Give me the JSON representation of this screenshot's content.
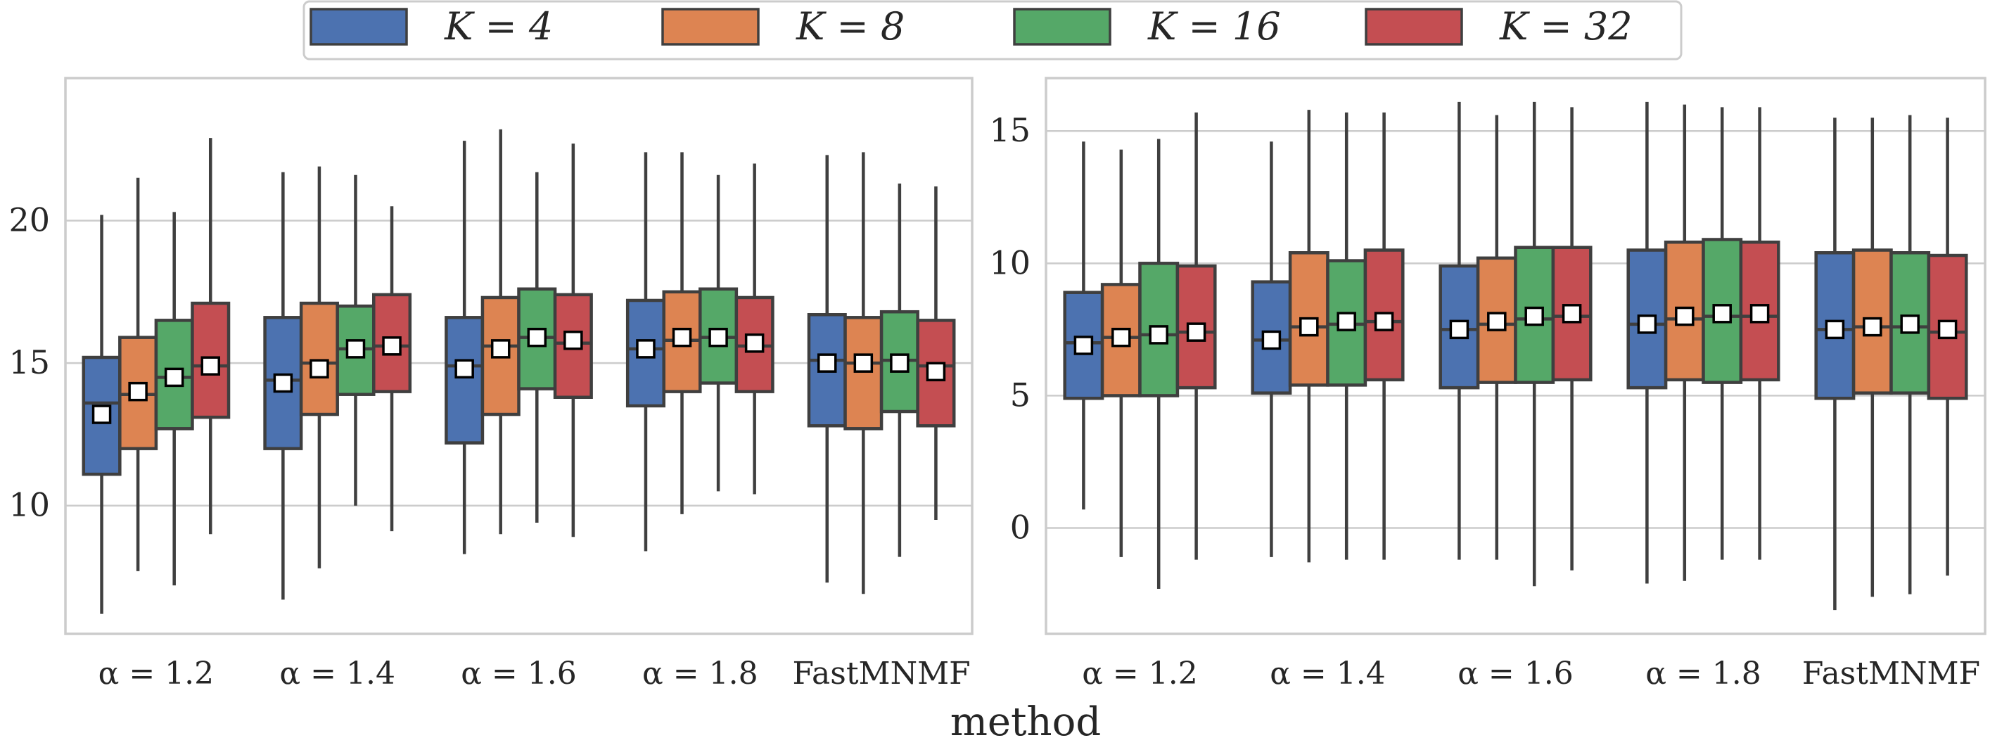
{
  "xlabel": "method",
  "categories": [
    "α = 1.2",
    "α = 1.4",
    "α = 1.6",
    "α = 1.8",
    "FastMNMF"
  ],
  "legend": {
    "placement": "top-center",
    "entries": [
      {
        "label": "K = 4",
        "color": "#4c72b0"
      },
      {
        "label": "K = 8",
        "color": "#dd8452"
      },
      {
        "label": "K = 16",
        "color": "#55a868"
      },
      {
        "label": "K = 32",
        "color": "#c44e52"
      }
    ]
  },
  "chart_data": [
    {
      "type": "box",
      "xlabel": "method",
      "ylabel": "",
      "ylim": [
        5.5,
        25.0
      ],
      "yticks": [
        10,
        15,
        20
      ],
      "grid": true,
      "mean_marker": "white-square",
      "categories": [
        "α = 1.2",
        "α = 1.4",
        "α = 1.6",
        "α = 1.8",
        "FastMNMF"
      ],
      "series": [
        {
          "name": "K = 4",
          "boxes": [
            {
              "whisker_low": 6.2,
              "q1": 11.1,
              "median": 13.6,
              "q3": 15.2,
              "whisker_high": 20.2,
              "mean": 13.2
            },
            {
              "whisker_low": 6.7,
              "q1": 12.0,
              "median": 14.4,
              "q3": 16.6,
              "whisker_high": 21.7,
              "mean": 14.3
            },
            {
              "whisker_low": 8.3,
              "q1": 12.2,
              "median": 14.9,
              "q3": 16.6,
              "whisker_high": 22.8,
              "mean": 14.8
            },
            {
              "whisker_low": 8.4,
              "q1": 13.5,
              "median": 15.5,
              "q3": 17.2,
              "whisker_high": 22.4,
              "mean": 15.5
            },
            {
              "whisker_low": 7.3,
              "q1": 12.8,
              "median": 15.1,
              "q3": 16.7,
              "whisker_high": 22.3,
              "mean": 15.0
            }
          ]
        },
        {
          "name": "K = 8",
          "boxes": [
            {
              "whisker_low": 7.7,
              "q1": 12.0,
              "median": 13.9,
              "q3": 15.9,
              "whisker_high": 21.5,
              "mean": 14.0
            },
            {
              "whisker_low": 7.8,
              "q1": 13.2,
              "median": 15.0,
              "q3": 17.1,
              "whisker_high": 21.9,
              "mean": 14.8
            },
            {
              "whisker_low": 9.0,
              "q1": 13.2,
              "median": 15.6,
              "q3": 17.3,
              "whisker_high": 23.2,
              "mean": 15.5
            },
            {
              "whisker_low": 9.7,
              "q1": 14.0,
              "median": 15.8,
              "q3": 17.5,
              "whisker_high": 22.4,
              "mean": 15.9
            },
            {
              "whisker_low": 6.9,
              "q1": 12.7,
              "median": 15.0,
              "q3": 16.6,
              "whisker_high": 22.4,
              "mean": 15.0
            }
          ]
        },
        {
          "name": "K = 16",
          "boxes": [
            {
              "whisker_low": 7.2,
              "q1": 12.7,
              "median": 14.5,
              "q3": 16.5,
              "whisker_high": 20.3,
              "mean": 14.5
            },
            {
              "whisker_low": 10.0,
              "q1": 13.9,
              "median": 15.5,
              "q3": 17.0,
              "whisker_high": 21.6,
              "mean": 15.5
            },
            {
              "whisker_low": 9.4,
              "q1": 14.1,
              "median": 15.9,
              "q3": 17.6,
              "whisker_high": 21.7,
              "mean": 15.9
            },
            {
              "whisker_low": 10.5,
              "q1": 14.3,
              "median": 15.9,
              "q3": 17.6,
              "whisker_high": 21.6,
              "mean": 15.9
            },
            {
              "whisker_low": 8.2,
              "q1": 13.3,
              "median": 15.1,
              "q3": 16.8,
              "whisker_high": 21.3,
              "mean": 15.0
            }
          ]
        },
        {
          "name": "K = 32",
          "boxes": [
            {
              "whisker_low": 9.0,
              "q1": 13.1,
              "median": 14.9,
              "q3": 17.1,
              "whisker_high": 22.9,
              "mean": 14.9
            },
            {
              "whisker_low": 9.1,
              "q1": 14.0,
              "median": 15.6,
              "q3": 17.4,
              "whisker_high": 20.5,
              "mean": 15.6
            },
            {
              "whisker_low": 8.9,
              "q1": 13.8,
              "median": 15.7,
              "q3": 17.4,
              "whisker_high": 22.7,
              "mean": 15.8
            },
            {
              "whisker_low": 10.4,
              "q1": 14.0,
              "median": 15.6,
              "q3": 17.3,
              "whisker_high": 22.0,
              "mean": 15.7
            },
            {
              "whisker_low": 9.5,
              "q1": 12.8,
              "median": 14.9,
              "q3": 16.5,
              "whisker_high": 21.2,
              "mean": 14.7
            }
          ]
        }
      ]
    },
    {
      "type": "box",
      "xlabel": "method",
      "ylabel": "",
      "ylim": [
        -4.0,
        17.0
      ],
      "yticks": [
        0,
        5,
        10,
        15
      ],
      "grid": true,
      "mean_marker": "white-square",
      "categories": [
        "α = 1.2",
        "α = 1.4",
        "α = 1.6",
        "α = 1.8",
        "FastMNMF"
      ],
      "series": [
        {
          "name": "K = 4",
          "boxes": [
            {
              "whisker_low": 0.7,
              "q1": 4.9,
              "median": 7.0,
              "q3": 8.9,
              "whisker_high": 14.6,
              "mean": 6.9
            },
            {
              "whisker_low": -1.1,
              "q1": 5.1,
              "median": 7.1,
              "q3": 9.3,
              "whisker_high": 14.6,
              "mean": 7.1
            },
            {
              "whisker_low": -1.2,
              "q1": 5.3,
              "median": 7.5,
              "q3": 9.9,
              "whisker_high": 16.1,
              "mean": 7.5
            },
            {
              "whisker_low": -2.1,
              "q1": 5.3,
              "median": 7.7,
              "q3": 10.5,
              "whisker_high": 16.1,
              "mean": 7.7
            },
            {
              "whisker_low": -3.1,
              "q1": 4.9,
              "median": 7.5,
              "q3": 10.4,
              "whisker_high": 15.5,
              "mean": 7.5
            }
          ]
        },
        {
          "name": "K = 8",
          "boxes": [
            {
              "whisker_low": -1.1,
              "q1": 5.0,
              "median": 7.2,
              "q3": 9.2,
              "whisker_high": 14.3,
              "mean": 7.2
            },
            {
              "whisker_low": -1.3,
              "q1": 5.4,
              "median": 7.6,
              "q3": 10.4,
              "whisker_high": 15.8,
              "mean": 7.6
            },
            {
              "whisker_low": -1.2,
              "q1": 5.5,
              "median": 7.7,
              "q3": 10.2,
              "whisker_high": 15.6,
              "mean": 7.8
            },
            {
              "whisker_low": -2.0,
              "q1": 5.6,
              "median": 7.9,
              "q3": 10.8,
              "whisker_high": 16.0,
              "mean": 8.0
            },
            {
              "whisker_low": -2.6,
              "q1": 5.1,
              "median": 7.6,
              "q3": 10.5,
              "whisker_high": 15.5,
              "mean": 7.6
            }
          ]
        },
        {
          "name": "K = 16",
          "boxes": [
            {
              "whisker_low": -2.3,
              "q1": 5.0,
              "median": 7.3,
              "q3": 10.0,
              "whisker_high": 14.7,
              "mean": 7.3
            },
            {
              "whisker_low": -1.2,
              "q1": 5.4,
              "median": 7.7,
              "q3": 10.1,
              "whisker_high": 15.7,
              "mean": 7.8
            },
            {
              "whisker_low": -2.2,
              "q1": 5.5,
              "median": 7.9,
              "q3": 10.6,
              "whisker_high": 16.1,
              "mean": 8.0
            },
            {
              "whisker_low": -1.2,
              "q1": 5.5,
              "median": 8.0,
              "q3": 10.9,
              "whisker_high": 15.9,
              "mean": 8.1
            },
            {
              "whisker_low": -2.5,
              "q1": 5.1,
              "median": 7.6,
              "q3": 10.4,
              "whisker_high": 15.6,
              "mean": 7.7
            }
          ]
        },
        {
          "name": "K = 32",
          "boxes": [
            {
              "whisker_low": -1.2,
              "q1": 5.3,
              "median": 7.4,
              "q3": 9.9,
              "whisker_high": 15.7,
              "mean": 7.4
            },
            {
              "whisker_low": -1.2,
              "q1": 5.6,
              "median": 7.8,
              "q3": 10.5,
              "whisker_high": 15.7,
              "mean": 7.8
            },
            {
              "whisker_low": -1.6,
              "q1": 5.6,
              "median": 8.0,
              "q3": 10.6,
              "whisker_high": 15.9,
              "mean": 8.1
            },
            {
              "whisker_low": -1.2,
              "q1": 5.6,
              "median": 8.0,
              "q3": 10.8,
              "whisker_high": 15.9,
              "mean": 8.1
            },
            {
              "whisker_low": -1.8,
              "q1": 4.9,
              "median": 7.4,
              "q3": 10.3,
              "whisker_high": 15.5,
              "mean": 7.5
            }
          ]
        }
      ]
    }
  ]
}
